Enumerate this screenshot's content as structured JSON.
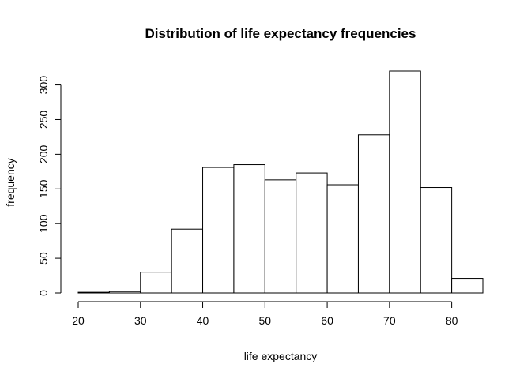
{
  "chart_data": {
    "type": "bar",
    "title": "Distribution of life expectancy frequencies",
    "xlabel": "life expectancy",
    "ylabel": "frequency",
    "bin_edges": [
      20,
      25,
      30,
      35,
      40,
      45,
      50,
      55,
      60,
      65,
      70,
      75,
      80,
      85
    ],
    "values": [
      1,
      2,
      30,
      92,
      181,
      185,
      163,
      173,
      156,
      228,
      320,
      152,
      21
    ],
    "xlim": [
      20,
      85
    ],
    "ylim": [
      0,
      320
    ],
    "x_ticks": [
      20,
      30,
      40,
      50,
      60,
      70,
      80
    ],
    "y_ticks": [
      0,
      50,
      100,
      150,
      200,
      250,
      300
    ],
    "grid": false,
    "legend": "none",
    "bar_fill": "#ffffff",
    "bar_stroke": "#000000"
  }
}
